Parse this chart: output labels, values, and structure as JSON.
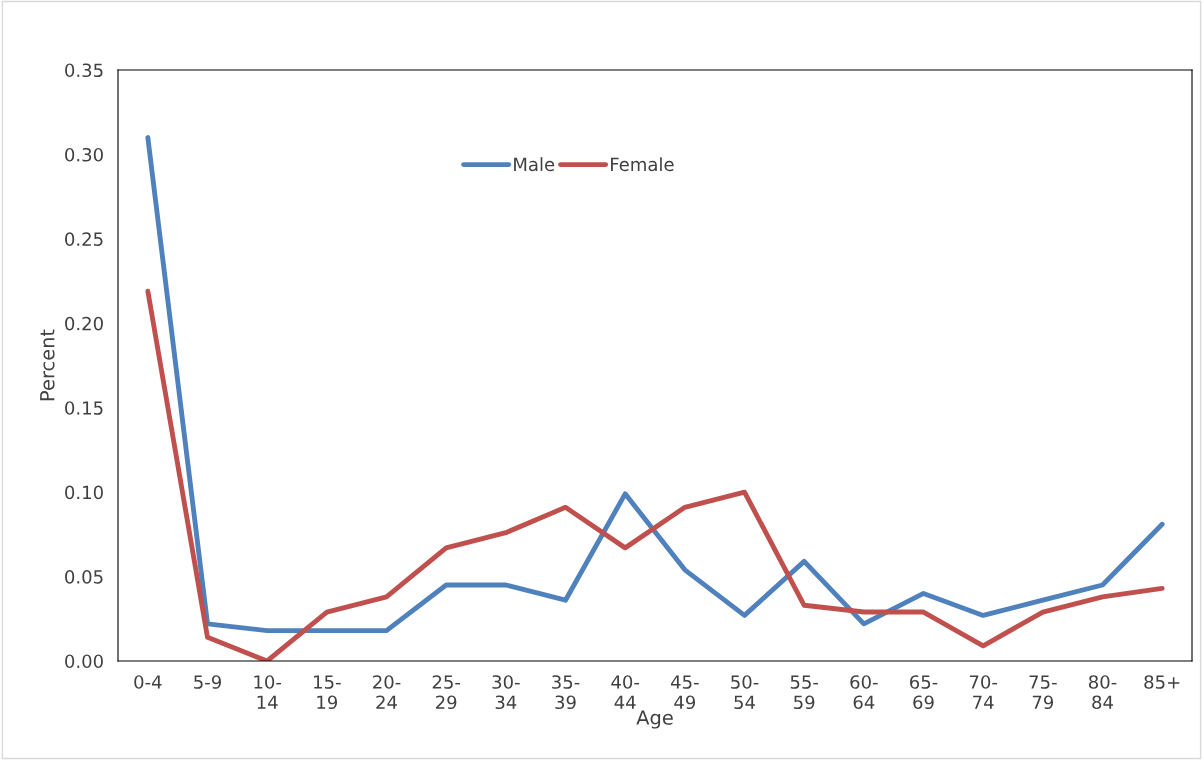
{
  "chart_data": {
    "type": "line",
    "xlabel": "Age",
    "ylabel": "Percent",
    "categories": [
      "0-4",
      "5-9",
      "10-\n14",
      "15-\n19",
      "20-\n24",
      "25-\n29",
      "30-\n34",
      "35-\n39",
      "40-\n44",
      "45-\n49",
      "50-\n54",
      "55-\n59",
      "60-\n64",
      "65-\n69",
      "70-\n74",
      "75-\n79",
      "80-\n84",
      "85+"
    ],
    "series": [
      {
        "name": "Male",
        "color": "#4f81bd",
        "values": [
          0.31,
          0.022,
          0.018,
          0.018,
          0.018,
          0.045,
          0.045,
          0.036,
          0.099,
          0.054,
          0.027,
          0.059,
          0.022,
          0.04,
          0.027,
          0.036,
          0.045,
          0.081
        ]
      },
      {
        "name": "Female",
        "color": "#c0504d",
        "values": [
          0.219,
          0.014,
          0.0,
          0.029,
          0.038,
          0.067,
          0.076,
          0.091,
          0.067,
          0.091,
          0.1,
          0.033,
          0.029,
          0.029,
          0.009,
          0.029,
          0.038,
          0.043
        ]
      }
    ],
    "ylim": [
      0,
      0.35
    ],
    "yticks": [
      {
        "value": 0,
        "label": "0.00"
      },
      {
        "value": 0.05,
        "label": "0.05"
      },
      {
        "value": 0.1,
        "label": "0.10"
      },
      {
        "value": 0.15,
        "label": "0.15"
      },
      {
        "value": 0.2,
        "label": "0.20"
      },
      {
        "value": 0.25,
        "label": "0.25"
      },
      {
        "value": 0.3,
        "label": "0.30"
      },
      {
        "value": 0.35,
        "label": "0.35"
      }
    ],
    "grid": false,
    "legend": "top",
    "marker": "none",
    "line_style": "solid"
  }
}
